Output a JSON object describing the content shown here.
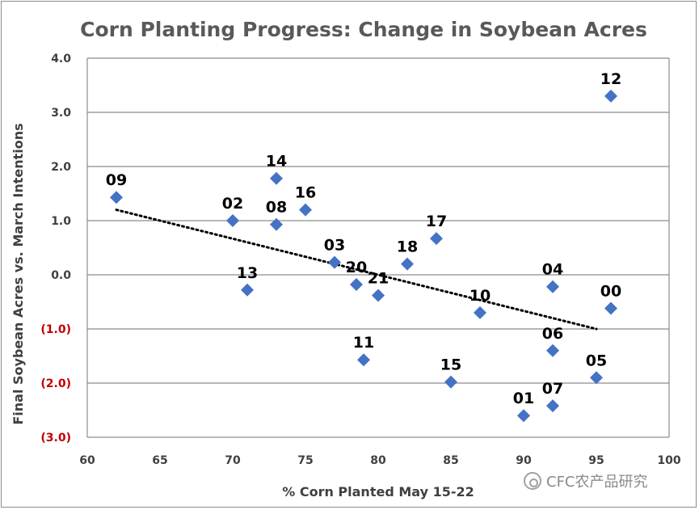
{
  "chart_data": {
    "type": "scatter",
    "title": "Corn Planting Progress: Change in Soybean Acres",
    "xlabel": "% Corn Planted May 15-22",
    "ylabel": "Final Soybean Acres vs. March Intentions",
    "xlim": [
      60,
      100
    ],
    "ylim": [
      -3,
      4
    ],
    "x_ticks": [
      "60",
      "65",
      "70",
      "75",
      "80",
      "85",
      "90",
      "95",
      "100"
    ],
    "y_ticks": [
      "4.0",
      "3.0",
      "2.0",
      "1.0",
      "0.0",
      "(1.0)",
      "(2.0)",
      "(3.0)"
    ],
    "y_tick_values": [
      4,
      3,
      2,
      1,
      0,
      -1,
      -2,
      -3
    ],
    "grid": "horizontal",
    "marker_color": "#4472C4",
    "negative_tick_color": "#C00000",
    "trendline": {
      "style": "dotted",
      "color": "#000000",
      "x": [
        62,
        95
      ],
      "y": [
        1.2,
        -1.0
      ]
    },
    "points": [
      {
        "label": "09",
        "x": 62,
        "y": 1.43
      },
      {
        "label": "02",
        "x": 70,
        "y": 1.0
      },
      {
        "label": "13",
        "x": 71,
        "y": -0.28
      },
      {
        "label": "14",
        "x": 73,
        "y": 1.78
      },
      {
        "label": "08",
        "x": 73,
        "y": 0.93
      },
      {
        "label": "16",
        "x": 75,
        "y": 1.2
      },
      {
        "label": "03",
        "x": 77,
        "y": 0.23
      },
      {
        "label": "20",
        "x": 78.5,
        "y": -0.18
      },
      {
        "label": "11",
        "x": 79,
        "y": -1.57
      },
      {
        "label": "21",
        "x": 80,
        "y": -0.38
      },
      {
        "label": "18",
        "x": 82,
        "y": 0.2
      },
      {
        "label": "17",
        "x": 84,
        "y": 0.67
      },
      {
        "label": "15",
        "x": 85,
        "y": -1.98
      },
      {
        "label": "10",
        "x": 87,
        "y": -0.7
      },
      {
        "label": "01",
        "x": 90,
        "y": -2.6
      },
      {
        "label": "04",
        "x": 92,
        "y": -0.22
      },
      {
        "label": "06",
        "x": 92,
        "y": -1.4
      },
      {
        "label": "07",
        "x": 92,
        "y": -2.42
      },
      {
        "label": "05",
        "x": 95,
        "y": -1.9
      },
      {
        "label": "12",
        "x": 96,
        "y": 3.3
      },
      {
        "label": "00",
        "x": 96,
        "y": -0.62
      }
    ]
  },
  "watermark": {
    "text": "CFC农产品研究",
    "icon": "wechat-icon"
  }
}
